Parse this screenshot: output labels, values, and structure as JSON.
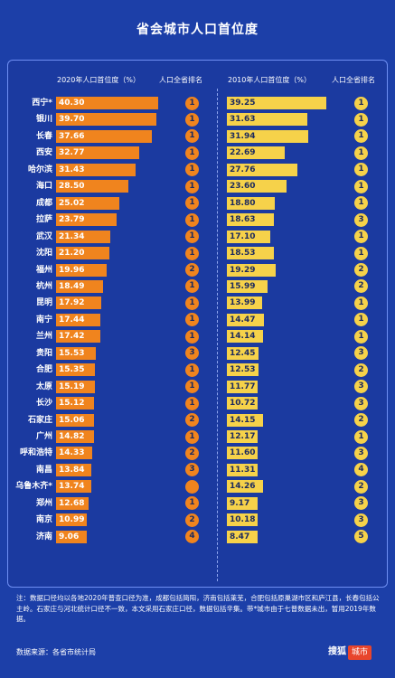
{
  "header": {
    "title": "省会城市人口首位度"
  },
  "columns": {
    "p2020": "2020年人口首位度（%）",
    "r2020": "人口全省排名",
    "p2010": "2010年人口首位度（%）",
    "r2010": "人口全省排名"
  },
  "footer": {
    "note": "注：数据口径均以各地2020年普查口径为准，成都包括简阳，济南包括莱芜，合肥包括原巢湖市区和庐江县，长春包括公主岭。石家庄与河北统计口径不一致，本文采用石家庄口径，数据包括辛集。带*城市由于七普数据未出，暂用2019年数据。",
    "source": "数据来源：各省市统计局",
    "logo_main": "搜狐",
    "logo_badge": "城市"
  },
  "colors": {
    "bar2020": "#f0841e",
    "bar2010": "#f6d24a",
    "background": "#1c3fa8"
  },
  "chart_data": {
    "type": "bar",
    "title": "省会城市人口首位度",
    "categories": [
      "西宁*",
      "银川",
      "长春",
      "西安",
      "哈尔滨",
      "海口",
      "成都",
      "拉萨",
      "武汉",
      "沈阳",
      "福州",
      "杭州",
      "昆明",
      "南宁",
      "兰州",
      "贵阳",
      "合肥",
      "太原",
      "长沙",
      "石家庄",
      "广州",
      "呼和浩特",
      "南昌",
      "乌鲁木齐*",
      "郑州",
      "南京",
      "济南"
    ],
    "series": [
      {
        "name": "2020年人口首位度（%）",
        "labels": [
          "40.30",
          "39.70",
          "37.66",
          "32.77",
          "31.43",
          "28.50",
          "25.02",
          "23.79",
          "21.34",
          "21.20",
          "19.96",
          "18.49",
          "17.92",
          "17.44",
          "17.42",
          "15.53",
          "15.35",
          "15.19",
          "15.12",
          "15.06",
          "14.82",
          "14.33",
          "13.84",
          "13.74",
          "12.68",
          "10.99",
          "9.06"
        ],
        "values": [
          40.3,
          39.7,
          37.66,
          32.77,
          31.43,
          28.5,
          25.02,
          23.79,
          21.34,
          21.2,
          19.96,
          18.49,
          17.92,
          17.44,
          17.42,
          15.53,
          15.35,
          15.19,
          15.12,
          15.06,
          14.82,
          14.33,
          13.84,
          13.74,
          12.68,
          10.99,
          9.06
        ]
      },
      {
        "name": "2010年人口首位度（%）",
        "labels": [
          "39.25",
          "31.63",
          "31.94",
          "22.69",
          "27.76",
          "23.60",
          "18.80",
          "18.63",
          "17.10",
          "18.53",
          "19.29",
          "15.99",
          "13.99",
          "14.47",
          "14.14",
          "12.45",
          "12.53",
          "11.77",
          "10.72",
          "14.15",
          "12.17",
          "11.60",
          "11.31",
          "14.26",
          "9.17",
          "10.18",
          "8.47"
        ],
        "values": [
          39.25,
          31.63,
          31.94,
          22.69,
          27.76,
          23.6,
          18.8,
          18.63,
          17.1,
          18.53,
          19.29,
          15.99,
          13.99,
          14.47,
          14.14,
          12.45,
          12.53,
          11.77,
          10.72,
          14.15,
          12.17,
          11.6,
          11.31,
          14.26,
          9.17,
          10.18,
          8.47
        ]
      }
    ],
    "rank_2020": [
      "1",
      "1",
      "1",
      "1",
      "1",
      "1",
      "1",
      "1",
      "1",
      "1",
      "2",
      "1",
      "1",
      "1",
      "1",
      "3",
      "1",
      "1",
      "1",
      "2",
      "1",
      "2",
      "3",
      "",
      "1",
      "2",
      "4"
    ],
    "rank_2010": [
      "1",
      "1",
      "1",
      "1",
      "1",
      "1",
      "1",
      "3",
      "1",
      "1",
      "2",
      "2",
      "1",
      "1",
      "1",
      "3",
      "2",
      "3",
      "3",
      "2",
      "1",
      "3",
      "4",
      "2",
      "3",
      "3",
      "5"
    ],
    "xlim": [
      0,
      41
    ]
  }
}
